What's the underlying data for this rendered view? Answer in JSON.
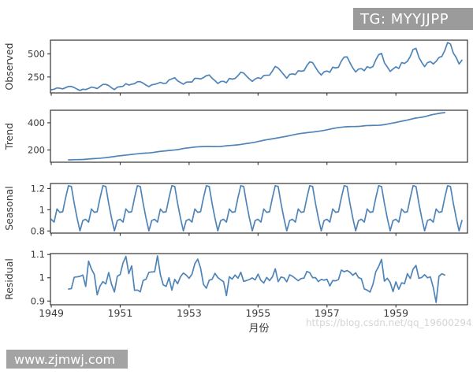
{
  "watermarks": {
    "tg_badge": {
      "text": "TG: MYYJJPP",
      "bg": "#9b9b9b",
      "fg": "#ffffff"
    },
    "site_badge": {
      "text": "www.zjmwj.com",
      "bg": "#a3a3a3",
      "fg": "#ffffff"
    },
    "faint_url": {
      "text": "https://blog.csdn.net/qq_19600294",
      "color": "#d5d5d5"
    }
  },
  "chart_data": {
    "type": "line",
    "title": "",
    "xlabel": "月份",
    "model": "multiplicative seasonal decomposition (trend = centered 12-month moving average, residual = observed / (trend × seasonal))",
    "x_start_year": 1949,
    "x_months": 144,
    "x_tick_years": [
      1949,
      1951,
      1953,
      1955,
      1957,
      1959
    ],
    "x_tick_labels": [
      "1949",
      "1951",
      "1953",
      "1955",
      "1957",
      "1959"
    ],
    "line_color": "#4f84b8",
    "axis_color": "#333333",
    "label_color": "#3a3a3a",
    "grid": false,
    "legend": "none",
    "subplots": [
      {
        "ylabel": "Observed",
        "yticks": [
          250,
          500
        ]
      },
      {
        "ylabel": "Trend",
        "yticks": [
          200,
          400
        ]
      },
      {
        "ylabel": "Seasonal",
        "yticks": [
          0.8,
          1.0,
          1.2
        ]
      },
      {
        "ylabel": "Residual",
        "yticks": [
          0.9,
          1.0,
          1.1
        ]
      }
    ],
    "observed": [
      112,
      118,
      132,
      129,
      121,
      135,
      148,
      148,
      136,
      119,
      104,
      118,
      115,
      126,
      141,
      135,
      125,
      149,
      170,
      170,
      158,
      133,
      114,
      140,
      145,
      150,
      178,
      163,
      172,
      178,
      199,
      199,
      184,
      162,
      146,
      166,
      171,
      180,
      193,
      181,
      183,
      218,
      230,
      242,
      209,
      191,
      172,
      194,
      196,
      196,
      236,
      235,
      229,
      243,
      264,
      272,
      237,
      211,
      180,
      201,
      204,
      188,
      235,
      227,
      234,
      264,
      302,
      293,
      259,
      229,
      203,
      229,
      242,
      233,
      267,
      269,
      270,
      315,
      364,
      347,
      312,
      274,
      237,
      278,
      284,
      277,
      317,
      313,
      318,
      374,
      413,
      405,
      355,
      306,
      271,
      306,
      315,
      301,
      356,
      348,
      355,
      422,
      465,
      467,
      404,
      347,
      305,
      336,
      340,
      318,
      362,
      348,
      363,
      435,
      491,
      505,
      404,
      359,
      310,
      337,
      360,
      342,
      406,
      396,
      420,
      472,
      548,
      559,
      463,
      407,
      362,
      405,
      417,
      391,
      419,
      461,
      472,
      535,
      622,
      606,
      508,
      461,
      390,
      432
    ],
    "seasonal_factors": [
      0.9102,
      0.8836,
      1.0074,
      0.9759,
      0.9814,
      1.1128,
      1.2266,
      1.2199,
      1.0605,
      0.9218,
      0.8012,
      0.8988
    ]
  }
}
